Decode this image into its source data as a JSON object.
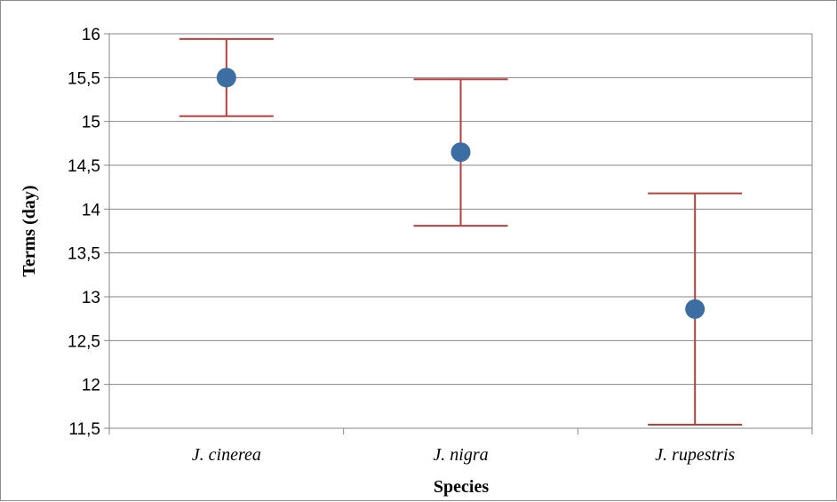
{
  "chart_data": {
    "type": "scatter",
    "title": "",
    "xlabel": "Species",
    "ylabel": "Terms (day)",
    "categories": [
      "J. cinerea",
      "J. nigra",
      "J. rupestris"
    ],
    "series": [
      {
        "values": [
          15.5,
          14.65,
          12.86
        ],
        "error_low": [
          15.06,
          13.81,
          11.54
        ],
        "error_high": [
          15.94,
          15.48,
          14.18
        ]
      }
    ],
    "ylim": [
      11.5,
      16
    ],
    "yticks": [
      "11,5",
      "12",
      "12,5",
      "13",
      "13,5",
      "14",
      "14,5",
      "15",
      "15,5",
      "16"
    ],
    "grid": true,
    "legend": "none",
    "colors": {
      "marker": "#3c6ea3",
      "error_bar": "#b5403e",
      "gridline": "#868686",
      "axis": "#868686"
    }
  }
}
